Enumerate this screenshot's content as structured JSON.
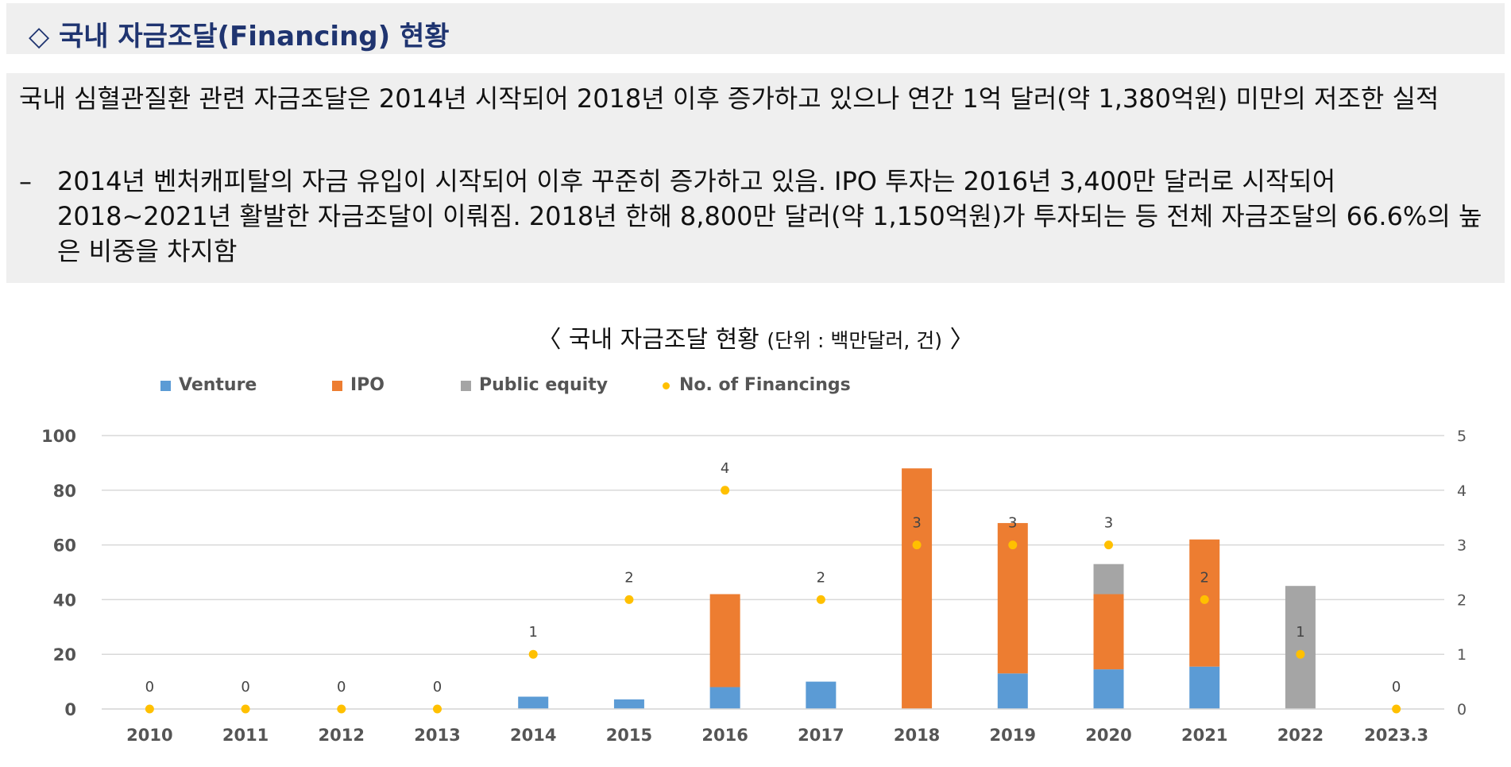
{
  "header": {
    "title": "◇ 국내 자금조달(Financing) 현황"
  },
  "summary": {
    "main": "국내 심혈관질환 관련 자금조달은 2014년 시작되어 2018년 이후 증가하고 있으나 연간 1억 달러(약 1,380억원) 미만의 저조한 실적",
    "bullet_marker": "–",
    "bullet": "2014년 벤처캐피탈의 자금 유입이 시작되어 이후 꾸준히 증가하고 있음. IPO 투자는 2016년 3,400만 달러로 시작되어 2018~2021년 활발한 자금조달이 이뤄짐. 2018년 한해 8,800만 달러(약 1,150억원)가 투자되는 등 전체 자금조달의 66.6%의 높은 비중을 차지함"
  },
  "chart_data": {
    "type": "bar",
    "stacked": true,
    "title": "〈 국내 자금조달 현황",
    "title_unit": "(단위 : 백만달러, 건)",
    "title_close": "〉",
    "categories": [
      "2010",
      "2011",
      "2012",
      "2013",
      "2014",
      "2015",
      "2016",
      "2017",
      "2018",
      "2019",
      "2020",
      "2021",
      "2022",
      "2023.3"
    ],
    "series": [
      {
        "name": "Venture",
        "color": "#5b9bd5",
        "values": [
          0,
          0,
          0,
          0,
          4.5,
          3.5,
          8,
          10,
          0,
          13,
          14.5,
          15.5,
          0,
          0
        ]
      },
      {
        "name": "IPO",
        "color": "#ed7d31",
        "values": [
          0,
          0,
          0,
          0,
          0,
          0,
          34,
          0,
          88,
          55,
          27.5,
          46.5,
          0,
          0
        ]
      },
      {
        "name": "Public equity",
        "color": "#a5a5a5",
        "values": [
          0,
          0,
          0,
          0,
          0,
          0,
          0,
          0,
          0,
          0,
          11,
          0,
          45,
          0
        ]
      }
    ],
    "line_series": {
      "name": "No. of Financings",
      "color": "#ffc000",
      "axis": "right",
      "values": [
        0,
        0,
        0,
        0,
        1,
        2,
        4,
        2,
        3,
        3,
        3,
        2,
        1,
        0
      ]
    },
    "ylim": [
      0,
      100
    ],
    "y_ticks": [
      0,
      20,
      40,
      60,
      80,
      100
    ],
    "y2lim": [
      0,
      5
    ],
    "y2_ticks": [
      0,
      1,
      2,
      3,
      4,
      5
    ],
    "grid": true,
    "legend_position": "top-left",
    "xlabel": "",
    "ylabel": ""
  }
}
